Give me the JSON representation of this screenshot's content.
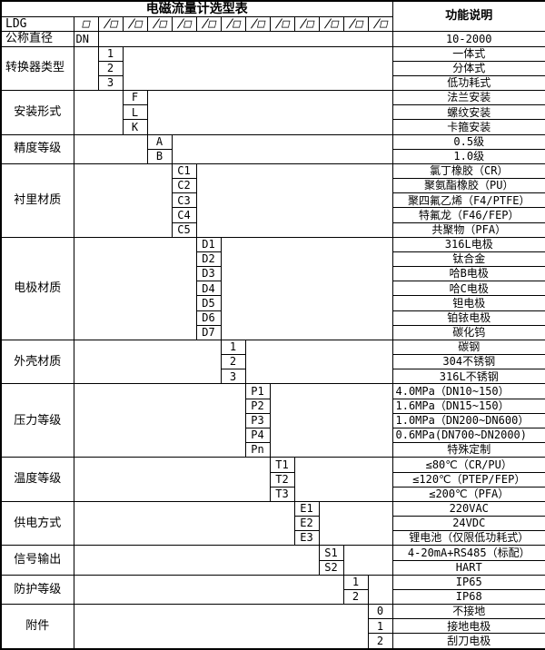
{
  "title": "电磁流量计选型表",
  "function_header": "功能说明",
  "model_row": {
    "model_code": "LDG",
    "base_box": "□",
    "slot_boxes": [
      "/□",
      "/□",
      "/□",
      "/□",
      "/□",
      "/□",
      "/□",
      "/□",
      "/□",
      "/□",
      "/□",
      "/□"
    ]
  },
  "groups": [
    {
      "label": "公称直径",
      "rows": [
        {
          "code": "DN",
          "desc": "10-2000"
        }
      ]
    },
    {
      "label": "转换器类型",
      "rows": [
        {
          "code": "1",
          "desc": "一体式"
        },
        {
          "code": "2",
          "desc": "分体式"
        },
        {
          "code": "3",
          "desc": "低功耗式"
        }
      ]
    },
    {
      "label": "安装形式",
      "rows": [
        {
          "code": "F",
          "desc": "法兰安装"
        },
        {
          "code": "L",
          "desc": "螺纹安装"
        },
        {
          "code": "K",
          "desc": "卡箍安装"
        }
      ]
    },
    {
      "label": "精度等级",
      "rows": [
        {
          "code": "A",
          "desc": "0.5级"
        },
        {
          "code": "B",
          "desc": "1.0级"
        }
      ]
    },
    {
      "label": "衬里材质",
      "rows": [
        {
          "code": "C1",
          "desc": "氯丁橡胶（CR）"
        },
        {
          "code": "C2",
          "desc": "聚氨酯橡胶（PU）"
        },
        {
          "code": "C3",
          "desc": "聚四氟乙烯（F4/PTFE）"
        },
        {
          "code": "C4",
          "desc": "特氟龙（F46/FEP）"
        },
        {
          "code": "C5",
          "desc": "共聚物（PFA）"
        }
      ]
    },
    {
      "label": "电极材质",
      "rows": [
        {
          "code": "D1",
          "desc": "316L电极"
        },
        {
          "code": "D2",
          "desc": "钛合金"
        },
        {
          "code": "D3",
          "desc": "哈B电极"
        },
        {
          "code": "D4",
          "desc": "哈C电极"
        },
        {
          "code": "D5",
          "desc": "钽电极"
        },
        {
          "code": "D6",
          "desc": "铂铱电极"
        },
        {
          "code": "D7",
          "desc": "碳化钨"
        }
      ]
    },
    {
      "label": "外壳材质",
      "rows": [
        {
          "code": "1",
          "desc": "碳钢"
        },
        {
          "code": "2",
          "desc": "304不锈钢"
        },
        {
          "code": "3",
          "desc": "316L不锈钢"
        }
      ]
    },
    {
      "label": "压力等级",
      "rows": [
        {
          "code": "P1",
          "desc": "4.0MPa（DN10~150）"
        },
        {
          "code": "P2",
          "desc": "1.6MPa（DN15~150）"
        },
        {
          "code": "P3",
          "desc": "1.0MPa（DN200~DN600）"
        },
        {
          "code": "P4",
          "desc": "0.6MPa(DN700~DN2000)"
        },
        {
          "code": "Pn",
          "desc": "特殊定制"
        }
      ]
    },
    {
      "label": "温度等级",
      "rows": [
        {
          "code": "T1",
          "desc": "≤80℃（CR/PU）"
        },
        {
          "code": "T2",
          "desc": "≤120℃（PTEP/FEP）"
        },
        {
          "code": "T3",
          "desc": "≤200℃（PFA）"
        }
      ]
    },
    {
      "label": "供电方式",
      "rows": [
        {
          "code": "E1",
          "desc": "220VAC"
        },
        {
          "code": "E2",
          "desc": "24VDC"
        },
        {
          "code": "E3",
          "desc": "锂电池（仅限低功耗式）"
        }
      ]
    },
    {
      "label": "信号输出",
      "rows": [
        {
          "code": "S1",
          "desc": "4-20mA+RS485（标配）"
        },
        {
          "code": "S2",
          "desc": "HART"
        }
      ]
    },
    {
      "label": "防护等级",
      "rows": [
        {
          "code": "1",
          "desc": "IP65"
        },
        {
          "code": "2",
          "desc": "IP68"
        }
      ]
    },
    {
      "label": "附件",
      "rows": [
        {
          "code": "0",
          "desc": "不接地"
        },
        {
          "code": "1",
          "desc": "接地电极"
        },
        {
          "code": "2",
          "desc": "刮刀电极"
        }
      ]
    }
  ],
  "colors": {
    "border": "#000000",
    "text": "#000000",
    "background": "#ffffff"
  }
}
